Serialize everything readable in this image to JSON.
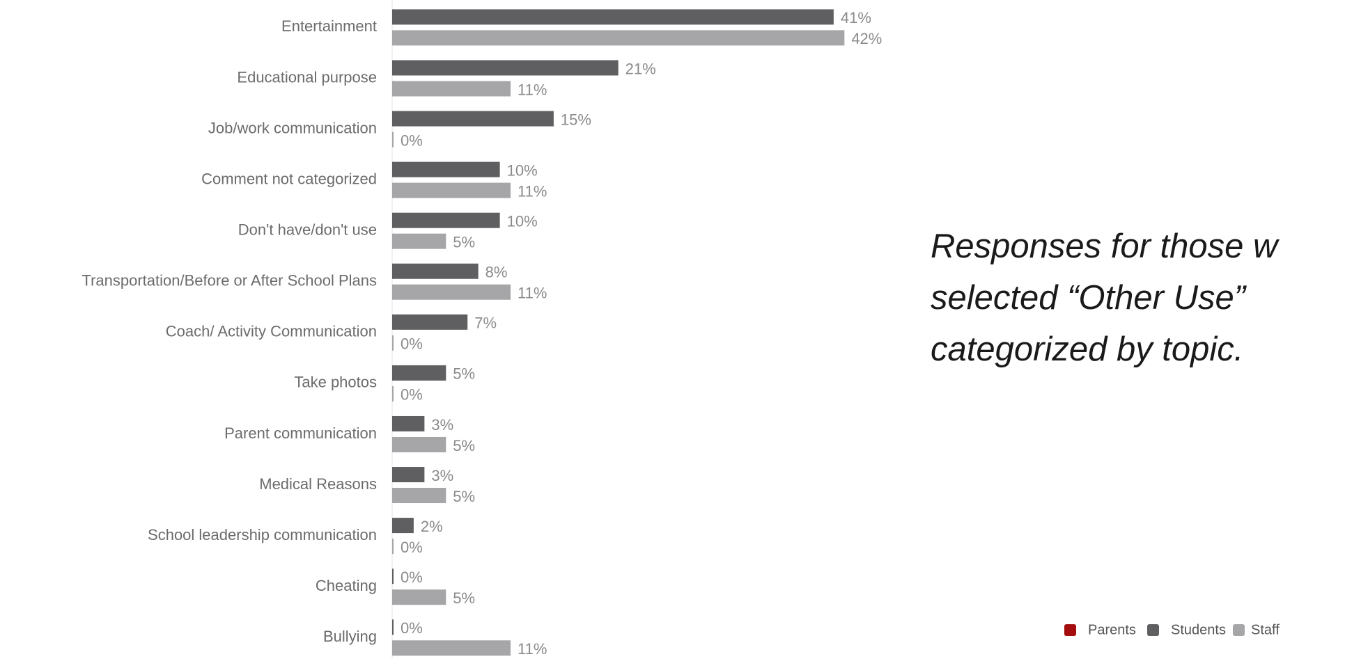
{
  "chart_data": {
    "type": "hbar",
    "categories": [
      "Entertainment",
      "Educational purpose",
      "Job/work communication",
      "Comment not categorized",
      "Don't have/don't use",
      "Transportation/Before or After School Plans",
      "Coach/ Activity Communication",
      "Take photos",
      "Parent communication",
      "Medical Reasons",
      "School leadership communication",
      "Cheating",
      "Bullying"
    ],
    "series": [
      {
        "name": "Parents",
        "color": "#a50e0e",
        "values": [
          null,
          null,
          null,
          null,
          null,
          null,
          null,
          null,
          null,
          null,
          null,
          null,
          null
        ]
      },
      {
        "name": "Students",
        "color": "#5f5f61",
        "values": [
          41,
          21,
          15,
          10,
          10,
          8,
          7,
          5,
          3,
          3,
          2,
          0,
          0
        ],
        "value_labels": [
          "41%",
          "21%",
          "15%",
          "10%",
          "10%",
          "8%",
          "7%",
          "5%",
          "3%",
          "3%",
          "2%",
          "0%",
          "0%"
        ]
      },
      {
        "name": "Staff",
        "color": "#a6a6a8",
        "values": [
          42,
          11,
          0,
          11,
          5,
          11,
          0,
          0,
          5,
          5,
          0,
          5,
          11
        ],
        "value_labels": [
          "42%",
          "11%",
          "0%",
          "11%",
          "5%",
          "11%",
          "0%",
          "0%",
          "5%",
          "5%",
          "0%",
          "5%",
          "11%"
        ]
      }
    ],
    "xlim": [
      0,
      50
    ],
    "annotation": [
      "Responses for those w",
      "selected “Other Use”",
      "categorized by topic."
    ],
    "legend": "bottom-right"
  }
}
